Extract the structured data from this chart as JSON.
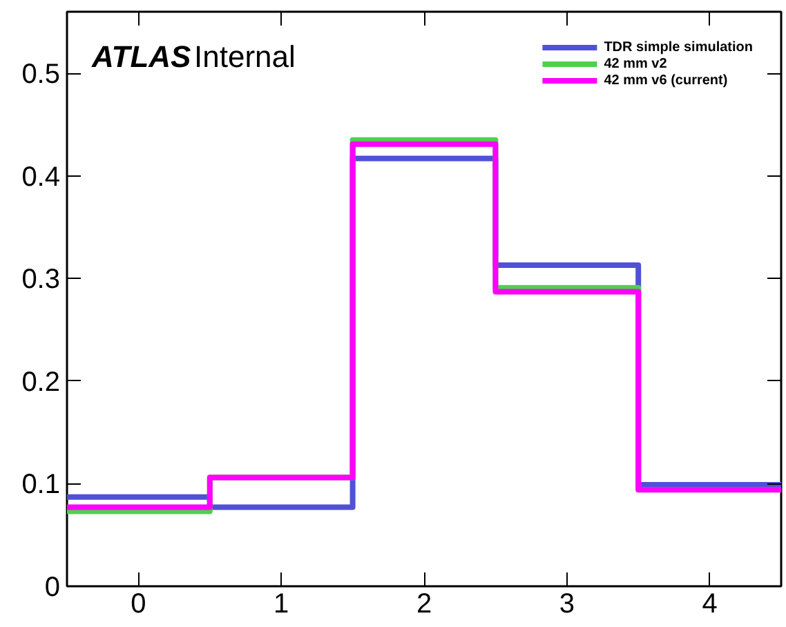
{
  "chart_data": {
    "type": "histogram",
    "bins": [
      -0.5,
      0.5,
      1.5,
      2.5,
      3.5,
      4.5
    ],
    "series": [
      {
        "name": "TDR simple simulation",
        "color": "#5050d8",
        "values": [
          0.087,
          0.077,
          0.417,
          0.313,
          0.099
        ]
      },
      {
        "name": "42 mm v2",
        "color": "#50d050",
        "values": [
          0.073,
          0.106,
          0.435,
          0.291,
          0.094
        ]
      },
      {
        "name": "42 mm v6 (current)",
        "color": "#ff00ff",
        "values": [
          0.077,
          0.106,
          0.431,
          0.287,
          0.094
        ]
      }
    ],
    "xlim": [
      -0.5,
      4.5
    ],
    "ylim": [
      0,
      0.56
    ],
    "xticks": [
      0,
      1,
      2,
      3,
      4
    ],
    "yticks": [
      0,
      0.1,
      0.2,
      0.3,
      0.4,
      0.5
    ],
    "annotations": [
      "ATLAS",
      "Internal"
    ],
    "legend": "top right",
    "grid": false
  }
}
